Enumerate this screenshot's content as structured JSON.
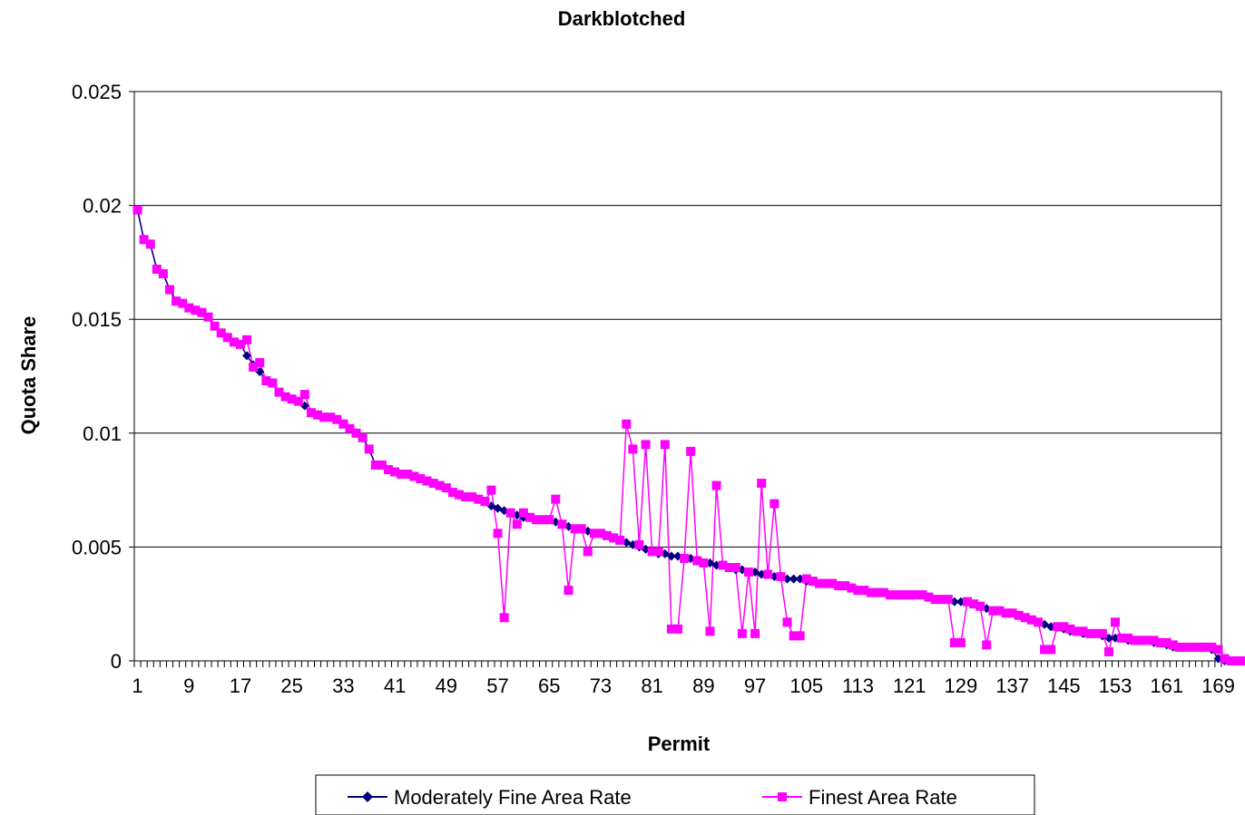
{
  "chart_data": {
    "type": "line",
    "title": "Darkblotched",
    "xlabel": "Permit",
    "ylabel": "Quota Share",
    "ylim": [
      0,
      0.025
    ],
    "yticks": [
      "0",
      "0.005",
      "0.01",
      "0.015",
      "0.02",
      "0.025"
    ],
    "yticks_values": [
      0,
      0.005,
      0.01,
      0.015,
      0.02,
      0.025
    ],
    "xticks": [
      "1",
      "9",
      "17",
      "25",
      "33",
      "41",
      "49",
      "57",
      "65",
      "73",
      "81",
      "89",
      "97",
      "105",
      "113",
      "121",
      "129",
      "137",
      "145",
      "153",
      "161",
      "169"
    ],
    "x_count": 169,
    "grid": true,
    "legend": "bottom",
    "series": [
      {
        "name": "Moderately Fine Area Rate",
        "color": "#000080",
        "marker": "diamond",
        "values": [
          0.0198,
          0.0185,
          0.0183,
          0.0172,
          0.017,
          0.0163,
          0.0158,
          0.0157,
          0.0155,
          0.0154,
          0.0153,
          0.0151,
          0.0147,
          0.0144,
          0.0142,
          0.014,
          0.0139,
          0.0134,
          0.013,
          0.0127,
          0.0123,
          0.0122,
          0.0118,
          0.0116,
          0.0115,
          0.0114,
          0.0112,
          0.0109,
          0.0108,
          0.0107,
          0.0107,
          0.0106,
          0.0104,
          0.0102,
          0.01,
          0.0098,
          0.0093,
          0.0086,
          0.0086,
          0.0084,
          0.0083,
          0.0082,
          0.0082,
          0.0081,
          0.008,
          0.0079,
          0.0078,
          0.0077,
          0.0076,
          0.0074,
          0.0073,
          0.0072,
          0.0072,
          0.0071,
          0.007,
          0.0068,
          0.0067,
          0.0066,
          0.0065,
          0.0064,
          0.0063,
          0.0063,
          0.0062,
          0.0062,
          0.0062,
          0.0061,
          0.006,
          0.0059,
          0.0058,
          0.0058,
          0.0057,
          0.0056,
          0.0056,
          0.0055,
          0.0054,
          0.0053,
          0.0052,
          0.0051,
          0.005,
          0.0049,
          0.0048,
          0.0047,
          0.0047,
          0.0046,
          0.0046,
          0.0045,
          0.0045,
          0.0044,
          0.0043,
          0.0043,
          0.0042,
          0.0042,
          0.0041,
          0.004,
          0.004,
          0.0039,
          0.0039,
          0.0038,
          0.0038,
          0.0037,
          0.0037,
          0.0036,
          0.0036,
          0.0036,
          0.0035,
          0.0035,
          0.0034,
          0.0034,
          0.0034,
          0.0033,
          0.0033,
          0.0032,
          0.0031,
          0.0031,
          0.003,
          0.003,
          0.003,
          0.0029,
          0.0029,
          0.0029,
          0.0029,
          0.0029,
          0.0029,
          0.0028,
          0.0027,
          0.0027,
          0.0027,
          0.0026,
          0.0026,
          0.0026,
          0.0025,
          0.0024,
          0.0023,
          0.0022,
          0.0022,
          0.0021,
          0.0021,
          0.002,
          0.0019,
          0.0018,
          0.0017,
          0.0016,
          0.0015,
          0.0015,
          0.0014,
          0.0013,
          0.0013,
          0.0012,
          0.0012,
          0.0012,
          0.0011,
          0.001,
          0.001,
          0.001,
          0.0009,
          0.0009,
          0.0009,
          0.0009,
          0.0008,
          0.0008,
          0.0007,
          0.0006,
          0.0006,
          0.0006,
          0.0006,
          0.0006,
          0.0006,
          0.0005,
          0.0001,
          0.0,
          0.0,
          0.0,
          0.0,
          0.0,
          0.0
        ]
      },
      {
        "name": "Finest Area Rate",
        "color": "#ff00ff",
        "marker": "square",
        "values": [
          0.0198,
          0.0185,
          0.0183,
          0.0172,
          0.017,
          0.0163,
          0.0158,
          0.0157,
          0.0155,
          0.0154,
          0.0153,
          0.0151,
          0.0147,
          0.0144,
          0.0142,
          0.014,
          0.0139,
          0.0141,
          0.0129,
          0.0131,
          0.0123,
          0.0122,
          0.0118,
          0.0116,
          0.0115,
          0.0114,
          0.0117,
          0.0109,
          0.0108,
          0.0107,
          0.0107,
          0.0106,
          0.0104,
          0.0102,
          0.01,
          0.0098,
          0.0093,
          0.0086,
          0.0086,
          0.0084,
          0.0083,
          0.0082,
          0.0082,
          0.0081,
          0.008,
          0.0079,
          0.0078,
          0.0077,
          0.0076,
          0.0074,
          0.0073,
          0.0072,
          0.0072,
          0.0071,
          0.007,
          0.0075,
          0.0056,
          0.0019,
          0.0065,
          0.006,
          0.0065,
          0.0063,
          0.0062,
          0.0062,
          0.0062,
          0.0071,
          0.006,
          0.0031,
          0.0058,
          0.0058,
          0.0048,
          0.0056,
          0.0056,
          0.0055,
          0.0054,
          0.0053,
          0.0104,
          0.0093,
          0.0051,
          0.0095,
          0.0048,
          0.0048,
          0.0095,
          0.0014,
          0.0014,
          0.0045,
          0.0092,
          0.0044,
          0.0043,
          0.0013,
          0.0077,
          0.0042,
          0.0041,
          0.0041,
          0.0012,
          0.0039,
          0.0012,
          0.0078,
          0.0038,
          0.0069,
          0.0037,
          0.0017,
          0.0011,
          0.0011,
          0.0036,
          0.0035,
          0.0034,
          0.0034,
          0.0034,
          0.0033,
          0.0033,
          0.0032,
          0.0031,
          0.0031,
          0.003,
          0.003,
          0.003,
          0.0029,
          0.0029,
          0.0029,
          0.0029,
          0.0029,
          0.0029,
          0.0028,
          0.0027,
          0.0027,
          0.0027,
          0.0008,
          0.0008,
          0.0026,
          0.0025,
          0.0024,
          0.0007,
          0.0022,
          0.0022,
          0.0021,
          0.0021,
          0.002,
          0.0019,
          0.0018,
          0.0017,
          0.0005,
          0.0005,
          0.0015,
          0.0015,
          0.0014,
          0.0013,
          0.0013,
          0.0012,
          0.0012,
          0.0012,
          0.0004,
          0.0017,
          0.001,
          0.001,
          0.0009,
          0.0009,
          0.0009,
          0.0009,
          0.0008,
          0.0008,
          0.0007,
          0.0006,
          0.0006,
          0.0006,
          0.0006,
          0.0006,
          0.0006,
          0.0005,
          0.0001,
          0.0,
          0.0,
          0.0,
          0.0,
          0.0,
          0.0
        ]
      }
    ]
  }
}
